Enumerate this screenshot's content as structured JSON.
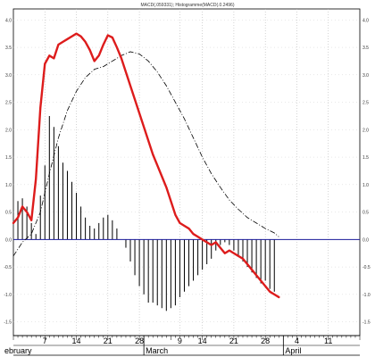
{
  "chart_data": {
    "type": "line",
    "title": "MACD(.059331); Histogramme(MACD(.0.2496)",
    "xlabel": "",
    "ylabel": "",
    "ylim": [
      -1.75,
      4.2
    ],
    "yticks": [
      4.0,
      3.5,
      3.0,
      2.5,
      2.0,
      1.5,
      1.0,
      0.5,
      0.0,
      -0.5,
      -1.0,
      -1.5
    ],
    "ytick_labels": [
      "4.0",
      "3.5",
      "3.0",
      "2.5",
      "2.0",
      "1.5",
      "1.0",
      "0.5",
      "0.0",
      "-0.5",
      "-1.0",
      "-1.5"
    ],
    "x_tick_labels": [
      {
        "day": 7,
        "label": "7"
      },
      {
        "day": 14,
        "label": "14"
      },
      {
        "day": 21,
        "label": "21"
      },
      {
        "day": 28,
        "label": "28"
      },
      {
        "day": 37,
        "label": "9"
      },
      {
        "day": 42,
        "label": "14"
      },
      {
        "day": 49,
        "label": "21"
      },
      {
        "day": 56,
        "label": "28"
      },
      {
        "day": 63,
        "label": "4"
      },
      {
        "day": 70,
        "label": "11"
      }
    ],
    "month_labels": [
      {
        "day": 0,
        "label": "ebruary"
      },
      {
        "day": 29,
        "label": "March"
      },
      {
        "day": 60,
        "label": "April"
      }
    ],
    "month_dividers": [
      29,
      60
    ],
    "xlim": [
      0,
      77
    ],
    "grid": true,
    "series": [
      {
        "type": "line",
        "color": "#dd1c1c",
        "x": [
          0,
          1,
          2,
          3,
          4,
          5,
          6,
          7,
          8,
          9,
          10,
          11,
          12,
          13,
          14,
          15,
          16,
          17,
          18,
          19,
          20,
          21,
          22,
          23,
          24,
          25,
          26,
          27,
          28,
          29,
          30,
          31,
          32,
          33,
          34,
          35,
          36,
          37,
          38,
          39,
          40,
          41,
          42,
          43,
          44,
          45,
          46,
          47,
          48,
          49,
          50,
          51,
          52,
          53,
          54,
          55,
          56,
          57,
          58,
          59
        ],
        "y": [
          0.3,
          0.4,
          0.6,
          0.5,
          0.35,
          1.1,
          2.4,
          3.2,
          3.35,
          3.3,
          3.55,
          3.6,
          3.65,
          3.7,
          3.75,
          3.7,
          3.6,
          3.45,
          3.25,
          3.35,
          3.55,
          3.72,
          3.68,
          3.5,
          3.3,
          3.05,
          2.8,
          2.55,
          2.3,
          2.05,
          1.8,
          1.55,
          1.35,
          1.15,
          0.95,
          0.7,
          0.45,
          0.3,
          0.25,
          0.2,
          0.1,
          0.05,
          0.0,
          -0.05,
          -0.1,
          -0.05,
          -0.15,
          -0.25,
          -0.2,
          -0.25,
          -0.3,
          -0.35,
          -0.45,
          -0.55,
          -0.65,
          -0.75,
          -0.85,
          -0.95,
          -1.0,
          -1.05
        ]
      },
      {
        "type": "dashed-line",
        "color": "#000000",
        "x": [
          0,
          2,
          4,
          6,
          8,
          10,
          12,
          14,
          16,
          18,
          20,
          22,
          24,
          26,
          28,
          30,
          32,
          34,
          36,
          38,
          40,
          42,
          44,
          46,
          48,
          50,
          52,
          54,
          56,
          58,
          59
        ],
        "y": [
          -0.3,
          -0.05,
          0.1,
          0.5,
          1.2,
          1.85,
          2.35,
          2.7,
          2.95,
          3.1,
          3.15,
          3.25,
          3.35,
          3.42,
          3.38,
          3.25,
          3.05,
          2.8,
          2.5,
          2.2,
          1.85,
          1.5,
          1.2,
          0.95,
          0.72,
          0.55,
          0.4,
          0.3,
          0.2,
          0.12,
          0.05
        ]
      },
      {
        "type": "histogram",
        "color": "#000000",
        "x": [
          1,
          2,
          3,
          4,
          5,
          6,
          7,
          8,
          9,
          10,
          11,
          12,
          13,
          14,
          15,
          16,
          17,
          18,
          19,
          20,
          21,
          22,
          23,
          24,
          25,
          26,
          27,
          28,
          29,
          30,
          31,
          32,
          33,
          34,
          35,
          36,
          37,
          38,
          39,
          40,
          41,
          42,
          43,
          44,
          45,
          46,
          47,
          48,
          49,
          50,
          51,
          52,
          53,
          54,
          55,
          56,
          57,
          58
        ],
        "y": [
          0.7,
          0.75,
          0.6,
          0.3,
          0.1,
          0.8,
          1.35,
          2.25,
          2.05,
          1.7,
          1.4,
          1.25,
          1.05,
          0.85,
          0.6,
          0.4,
          0.25,
          0.2,
          0.3,
          0.4,
          0.45,
          0.35,
          0.2,
          0.0,
          -0.15,
          -0.4,
          -0.65,
          -0.85,
          -1.0,
          -1.15,
          -1.15,
          -1.2,
          -1.25,
          -1.3,
          -1.25,
          -1.2,
          -1.05,
          -0.95,
          -0.85,
          -0.75,
          -0.65,
          -0.55,
          -0.45,
          -0.35,
          -0.2,
          -0.1,
          -0.05,
          -0.1,
          -0.2,
          -0.3,
          -0.4,
          -0.5,
          -0.6,
          -0.7,
          -0.8,
          -0.75,
          -0.9,
          -0.95
        ]
      }
    ]
  }
}
